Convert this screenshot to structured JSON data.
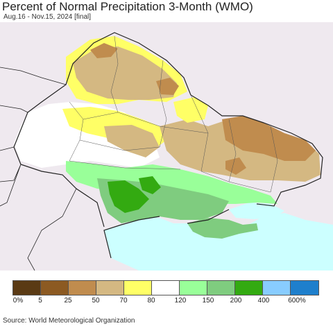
{
  "title": "Percent of Normal Precipitation 3-Month (WMO)",
  "subtitle": "Aug.16 - Nov.15, 2024 [final]",
  "source": "Source: World Meteorological Organization",
  "colors": {
    "land": "#efe9ef",
    "sea": "#ccffff",
    "border": "#222222",
    "admin": "#555555"
  },
  "legend": {
    "colors": [
      "#5a3a14",
      "#8c5a22",
      "#c08c4e",
      "#d4b882",
      "#ffff66",
      "#ffffff",
      "#99ff99",
      "#7fcc7f",
      "#33aa11",
      "#88ccff",
      "#1e7fcc"
    ],
    "ticks": [
      "0%",
      "5",
      "25",
      "50",
      "70",
      "80",
      "120",
      "150",
      "200",
      "400",
      "600%"
    ]
  }
}
